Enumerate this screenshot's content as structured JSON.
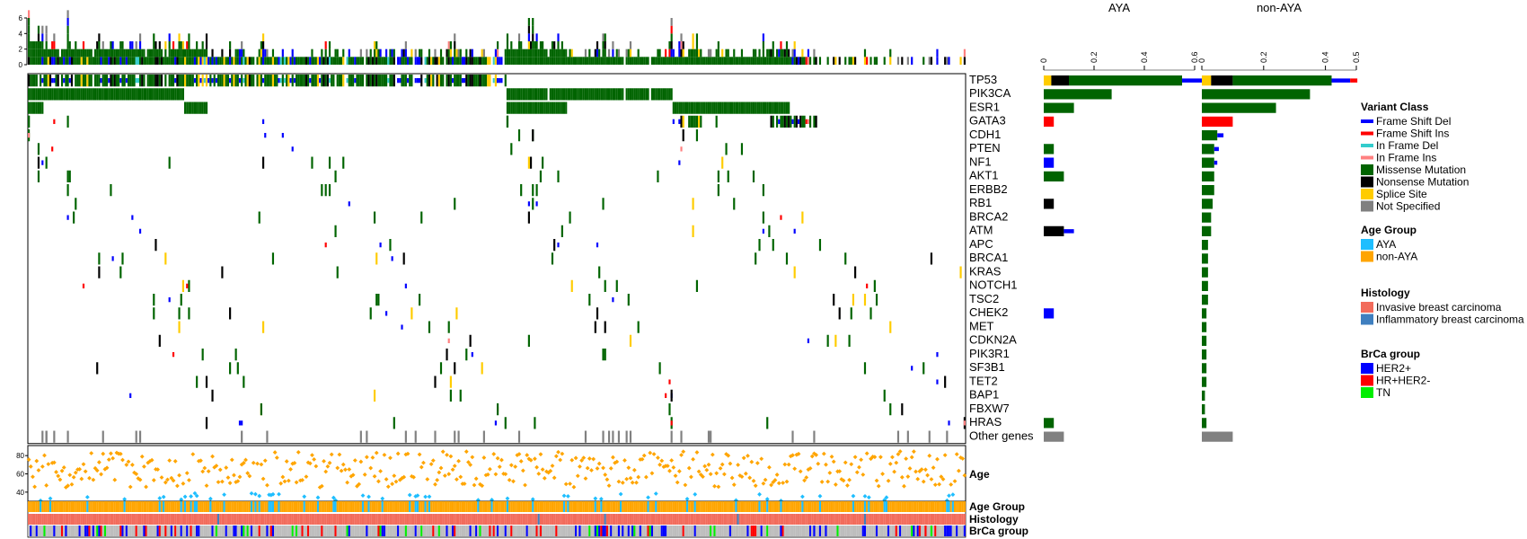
{
  "chart_data": {
    "type": "heatmap",
    "title": "",
    "genes": [
      "TP53",
      "PIK3CA",
      "ESR1",
      "GATA3",
      "CDH1",
      "PTEN",
      "NF1",
      "AKT1",
      "ERBB2",
      "RB1",
      "BRCA2",
      "ATM",
      "APC",
      "BRCA1",
      "KRAS",
      "NOTCH1",
      "TSC2",
      "CHEK2",
      "MET",
      "CDKN2A",
      "PIK3R1",
      "SF3B1",
      "TET2",
      "BAP1",
      "FBXW7",
      "HRAS",
      "Other genes"
    ],
    "sample_count": 480,
    "top_bar": {
      "ylim": [
        0,
        6
      ],
      "ticks": [
        0,
        2,
        4,
        6
      ]
    },
    "variant_classes": [
      {
        "name": "Frame Shift Del",
        "color": "#0000ff"
      },
      {
        "name": "Frame Shift Ins",
        "color": "#ff0000"
      },
      {
        "name": "In Frame Del",
        "color": "#33cccc"
      },
      {
        "name": "In Frame Ins",
        "color": "#ff8080"
      },
      {
        "name": "Missense Mutation",
        "color": "#006400"
      },
      {
        "name": "Nonsense Mutation",
        "color": "#000000"
      },
      {
        "name": "Splice Site",
        "color": "#ffcc00"
      },
      {
        "name": "Not Specified",
        "color": "#808080"
      }
    ],
    "gene_frequency": {
      "groups": [
        {
          "name": "AYA",
          "xlim": [
            0,
            0.6
          ],
          "ticks": [
            0,
            0.2,
            0.4,
            0.6
          ],
          "values": [
            0.55,
            0.27,
            0.12,
            0.04,
            0.0,
            0.04,
            0.04,
            0.08,
            0.0,
            0.04,
            0.0,
            0.08,
            0.0,
            0.0,
            0.0,
            0.0,
            0.0,
            0.04,
            0.0,
            0.0,
            0.0,
            0.0,
            0.0,
            0.0,
            0.0,
            0.04,
            0.08
          ],
          "extra": [
            0.08,
            0,
            0,
            0,
            0,
            0,
            0,
            0,
            0,
            0,
            0,
            0.04,
            0,
            0,
            0,
            0,
            0,
            0,
            0,
            0,
            0,
            0,
            0,
            0,
            0,
            0,
            0
          ]
        },
        {
          "name": "non-AYA",
          "xlim": [
            0,
            0.5
          ],
          "ticks": [
            0,
            0.2,
            0.4,
            0.5
          ],
          "values": [
            0.42,
            0.35,
            0.24,
            0.1,
            0.05,
            0.04,
            0.04,
            0.04,
            0.04,
            0.035,
            0.03,
            0.03,
            0.02,
            0.02,
            0.02,
            0.02,
            0.02,
            0.015,
            0.015,
            0.015,
            0.015,
            0.015,
            0.015,
            0.01,
            0.01,
            0.015,
            0.1
          ],
          "extra": [
            0.06,
            0,
            0,
            0,
            0.02,
            0.015,
            0.01,
            0,
            0,
            0,
            0,
            0,
            0,
            0,
            0,
            0,
            0,
            0,
            0,
            0,
            0,
            0,
            0,
            0,
            0,
            0,
            0
          ]
        }
      ]
    },
    "clinical": {
      "age": {
        "label": "Age",
        "ylim": [
          30,
          90
        ],
        "ticks": [
          40,
          60,
          80
        ],
        "aya_threshold": 40
      },
      "tracks": [
        "Age Group",
        "Histology",
        "BrCa group"
      ]
    },
    "legends": [
      {
        "title": "Variant Class",
        "items": [
          {
            "label": "Frame Shift Del",
            "color": "#0000ff",
            "style": "line"
          },
          {
            "label": "Frame Shift Ins",
            "color": "#ff0000",
            "style": "line"
          },
          {
            "label": "In Frame Del",
            "color": "#33cccc",
            "style": "line"
          },
          {
            "label": "In Frame Ins",
            "color": "#ff8080",
            "style": "line"
          },
          {
            "label": "Missense Mutation",
            "color": "#006400",
            "style": "box"
          },
          {
            "label": "Nonsense Mutation",
            "color": "#000000",
            "style": "box"
          },
          {
            "label": "Splice Site",
            "color": "#ffcc00",
            "style": "box"
          },
          {
            "label": "Not Specified",
            "color": "#808080",
            "style": "box"
          }
        ]
      },
      {
        "title": "Age Group",
        "items": [
          {
            "label": "AYA",
            "color": "#1ebeff",
            "style": "box"
          },
          {
            "label": "non-AYA",
            "color": "#ffa500",
            "style": "box"
          }
        ]
      },
      {
        "title": "Histology",
        "items": [
          {
            "label": "Invasive breast carcinoma",
            "color": "#f26b5b",
            "style": "box"
          },
          {
            "label": "Inflammatory breast carcinoma",
            "color": "#3f7fbf",
            "style": "box"
          }
        ]
      },
      {
        "title": "BrCa group",
        "items": [
          {
            "label": "HER2+",
            "color": "#0000ff",
            "style": "box"
          },
          {
            "label": "HR+HER2-",
            "color": "#ff0000",
            "style": "box"
          },
          {
            "label": "TN",
            "color": "#00ee00",
            "style": "box"
          }
        ]
      }
    ]
  }
}
